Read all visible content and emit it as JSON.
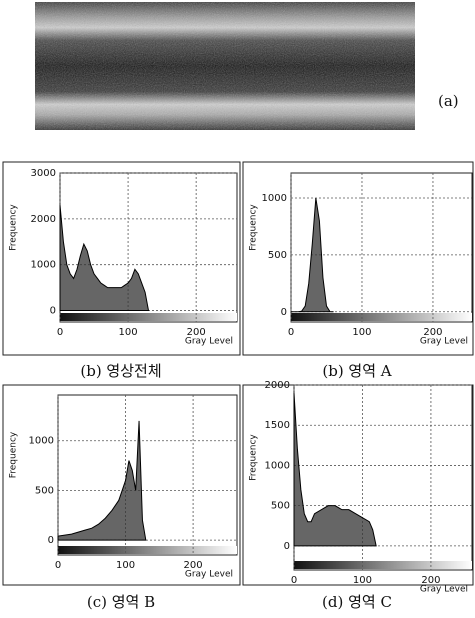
{
  "image_label": "(a)",
  "chart_data": [
    {
      "type": "area",
      "caption": "(b) 영상전체",
      "ylabel": "Frequency",
      "xlabel": "Gray Level",
      "color": "#333333",
      "grid": true,
      "x": [
        0,
        5,
        10,
        15,
        20,
        25,
        30,
        35,
        40,
        45,
        50,
        55,
        60,
        65,
        70,
        75,
        80,
        85,
        90,
        95,
        100,
        105,
        110,
        115,
        120,
        125,
        130
      ],
      "values": [
        2300,
        1500,
        1000,
        800,
        700,
        900,
        1200,
        1450,
        1300,
        1000,
        800,
        700,
        600,
        550,
        500,
        500,
        500,
        500,
        500,
        550,
        600,
        700,
        900,
        800,
        600,
        400,
        0
      ],
      "xlim": [
        0,
        260
      ],
      "ylim": [
        -250,
        3000
      ],
      "xticks": [
        0,
        100,
        200
      ],
      "yticks": [
        0,
        1000,
        2000,
        3000
      ]
    },
    {
      "type": "area",
      "caption": "(b) 영역 A",
      "ylabel": "Frequency",
      "xlabel": "Gray Level",
      "color": "#333333",
      "grid": true,
      "x": [
        0,
        5,
        10,
        15,
        20,
        25,
        30,
        35,
        40,
        45,
        50,
        55,
        60
      ],
      "values": [
        0,
        0,
        0,
        5,
        50,
        250,
        600,
        1000,
        800,
        300,
        50,
        0,
        0
      ],
      "xlim": [
        0,
        255
      ],
      "ylim": [
        -90,
        1220
      ],
      "xticks": [
        0,
        100,
        200
      ],
      "yticks": [
        0,
        500,
        1000
      ]
    },
    {
      "type": "area",
      "caption": "(c) 영역 B",
      "ylabel": "Frequency",
      "xlabel": "Gray Level",
      "color": "#333333",
      "grid": true,
      "x": [
        0,
        10,
        20,
        30,
        40,
        50,
        60,
        70,
        80,
        90,
        95,
        100,
        105,
        110,
        115,
        120,
        125,
        130
      ],
      "values": [
        40,
        50,
        60,
        80,
        100,
        120,
        160,
        220,
        300,
        400,
        500,
        600,
        800,
        700,
        500,
        1200,
        200,
        0
      ],
      "xlim": [
        0,
        265
      ],
      "ylim": [
        -150,
        1460
      ],
      "xticks": [
        0,
        100,
        200
      ],
      "yticks": [
        0,
        500,
        1000
      ]
    },
    {
      "type": "area",
      "caption": "(d) 영역 C",
      "ylabel": "Frequency",
      "xlabel": "Gray Level",
      "color": "#333333",
      "grid": true,
      "x": [
        0,
        5,
        10,
        15,
        20,
        25,
        30,
        40,
        50,
        60,
        70,
        80,
        90,
        100,
        110,
        115,
        120
      ],
      "values": [
        1900,
        1200,
        700,
        400,
        300,
        300,
        400,
        450,
        500,
        500,
        450,
        450,
        400,
        350,
        300,
        200,
        0
      ],
      "xlim": [
        0,
        260
      ],
      "ylim": [
        -300,
        2000
      ],
      "xticks": [
        0,
        100,
        200
      ],
      "yticks": [
        0,
        500,
        1000,
        1500,
        2000
      ]
    }
  ]
}
